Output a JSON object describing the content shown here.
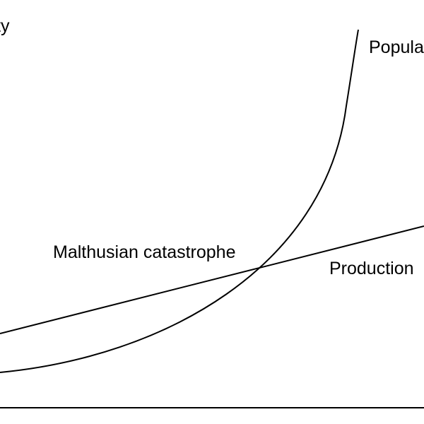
{
  "labels": {
    "y_axis": "ty",
    "population": "Popula",
    "production": "Production",
    "catastrophe": "Malthusian catastrophe"
  },
  "colors": {
    "stroke": "#000000",
    "background": "#ffffff",
    "text": "#000000"
  }
}
